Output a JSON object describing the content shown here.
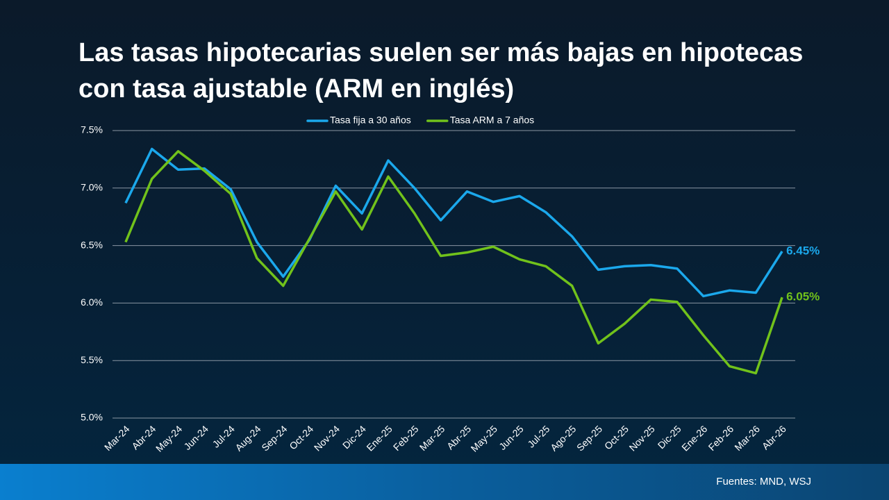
{
  "chart_data": {
    "type": "line",
    "title": "Las tasas hipotecarias suelen ser más bajas en hipotecas con tasa ajustable (ARM en inglés)",
    "source": "Fuentes: MND, WSJ",
    "categories": [
      "Mar-24",
      "Abr-24",
      "May-24",
      "Jun-24",
      "Jul-24",
      "Aug-24",
      "Sep-24",
      "Oct-24",
      "Nov-24",
      "Dic-24",
      "Ene-25",
      "Feb-25",
      "Mar-25",
      "Abr-25",
      "May-25",
      "Jun-25",
      "Jul-25",
      "Ago-25",
      "Sep-25",
      "Oct-25",
      "Nov-25",
      "Dic-25",
      "Ene-26",
      "Feb-26",
      "Mar-26",
      "Abr-26"
    ],
    "series": [
      {
        "name": "Tasa fija a 30 años",
        "color": "#1ba8ec",
        "values": [
          6.87,
          7.34,
          7.16,
          7.17,
          6.99,
          6.53,
          6.23,
          6.55,
          7.02,
          6.78,
          7.24,
          7.0,
          6.72,
          6.97,
          6.88,
          6.93,
          6.79,
          6.58,
          6.29,
          6.32,
          6.33,
          6.3,
          6.06,
          6.11,
          6.09,
          6.45
        ],
        "value_labels": [
          null,
          null,
          null,
          null,
          null,
          null,
          null,
          null,
          null,
          null,
          null,
          null,
          null,
          null,
          null,
          null,
          null,
          null,
          null,
          null,
          null,
          null,
          null,
          null,
          null,
          "6.45%"
        ]
      },
      {
        "name": "Tasa ARM a 7 años",
        "color": "#71c21b",
        "values": [
          6.53,
          7.08,
          7.32,
          7.15,
          6.95,
          6.39,
          6.15,
          6.56,
          6.97,
          6.64,
          7.1,
          6.78,
          6.41,
          6.44,
          6.49,
          6.38,
          6.32,
          6.15,
          5.65,
          5.82,
          6.03,
          6.01,
          5.72,
          5.45,
          5.39,
          6.05
        ],
        "value_labels": [
          null,
          null,
          null,
          null,
          null,
          null,
          null,
          null,
          null,
          null,
          null,
          null,
          null,
          null,
          null,
          null,
          null,
          null,
          null,
          null,
          null,
          null,
          null,
          null,
          null,
          "6.05%"
        ]
      }
    ],
    "ylim": [
      5.0,
      7.5
    ],
    "yticks": [
      {
        "value": 5.0,
        "label": "5.0%"
      },
      {
        "value": 5.5,
        "label": "5.5%"
      },
      {
        "value": 6.0,
        "label": "6.0%"
      },
      {
        "value": 6.5,
        "label": "6.5%"
      },
      {
        "value": 7.0,
        "label": "7.0%"
      },
      {
        "value": 7.5,
        "label": "7.5%"
      }
    ],
    "grid": true,
    "legend": "top"
  }
}
